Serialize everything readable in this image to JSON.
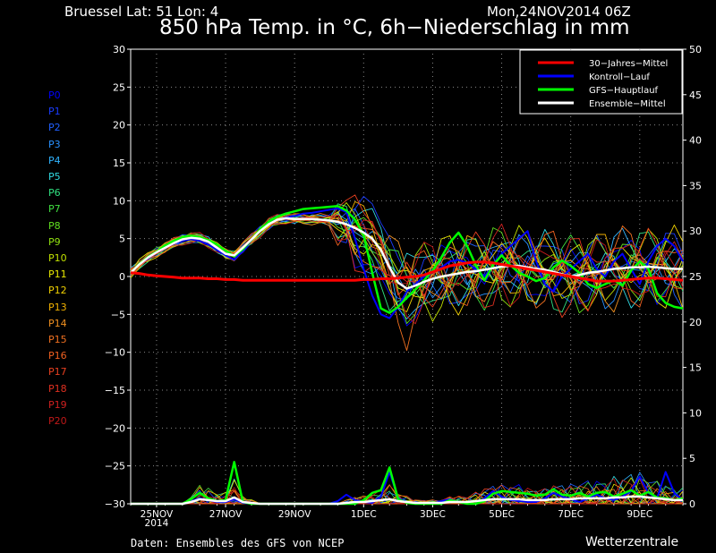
{
  "header": {
    "location": "Bruessel  Lat: 51 Lon: 4",
    "run": "Mon,24NOV2014 06Z",
    "title": "850 hPa Temp. in °C, 6h−Niederschlag in mm"
  },
  "footer": {
    "credit": "Daten: Ensembles des GFS von NCEP",
    "brand": "Wetterzentrale"
  },
  "members": [
    {
      "label": "P0",
      "color": "#0000ff"
    },
    {
      "label": "P1",
      "color": "#1a3cff"
    },
    {
      "label": "P2",
      "color": "#2060ff"
    },
    {
      "label": "P3",
      "color": "#2890ff"
    },
    {
      "label": "P4",
      "color": "#30b4ff"
    },
    {
      "label": "P5",
      "color": "#30d8e0"
    },
    {
      "label": "P6",
      "color": "#30e080"
    },
    {
      "label": "P7",
      "color": "#40e040"
    },
    {
      "label": "P8",
      "color": "#60e020"
    },
    {
      "label": "P9",
      "color": "#90e010"
    },
    {
      "label": "P10",
      "color": "#c0e000"
    },
    {
      "label": "P11",
      "color": "#e8e800"
    },
    {
      "label": "P12",
      "color": "#f0d000"
    },
    {
      "label": "P13",
      "color": "#f0b000"
    },
    {
      "label": "P14",
      "color": "#f09020"
    },
    {
      "label": "P15",
      "color": "#f07020"
    },
    {
      "label": "P16",
      "color": "#f06020"
    },
    {
      "label": "P17",
      "color": "#e84020"
    },
    {
      "label": "P18",
      "color": "#e03020"
    },
    {
      "label": "P19",
      "color": "#d02020"
    },
    {
      "label": "P20",
      "color": "#c01818"
    }
  ],
  "chart_data": {
    "type": "line",
    "x_ticks": [
      "25NOV\n2014",
      "27NOV",
      "29NOV",
      "1DEC",
      "3DEC",
      "5DEC",
      "7DEC",
      "9DEC"
    ],
    "x_range_days": [
      0,
      16
    ],
    "ylim_left": [
      -30,
      30
    ],
    "ylim_right": [
      0,
      50
    ],
    "yticks_left": [
      30,
      25,
      20,
      15,
      10,
      5,
      0,
      -5,
      -10,
      -15,
      -20,
      -25,
      -30
    ],
    "yticks_right": [
      50,
      45,
      40,
      35,
      30,
      25,
      20,
      15,
      10,
      5,
      0
    ],
    "grid": true,
    "legend_position": "top-right",
    "legend": [
      {
        "name": "30−Jahres−Mittel",
        "color": "#ff0000"
      },
      {
        "name": "Kontroll−Lauf",
        "color": "#0000ff"
      },
      {
        "name": "GFS−Hauptlauf",
        "color": "#00ff00"
      },
      {
        "name": "Ensemble−Mittel",
        "color": "#ffffff"
      }
    ],
    "temp_step_days": 0.25,
    "climate_mean": [
      0.5,
      0.4,
      0.2,
      0.1,
      0,
      -0.1,
      -0.2,
      -0.2,
      -0.2,
      -0.3,
      -0.3,
      -0.4,
      -0.4,
      -0.5,
      -0.5,
      -0.5,
      -0.5,
      -0.5,
      -0.5,
      -0.5,
      -0.5,
      -0.5,
      -0.5,
      -0.5,
      -0.5,
      -0.5,
      -0.5,
      -0.4,
      -0.4,
      -0.3,
      -0.3,
      -0.2,
      -0.1,
      0,
      0.2,
      0.6,
      1,
      1.4,
      1.6,
      1.8,
      1.9,
      1.9,
      1.8,
      1.6,
      1.4,
      1.2,
      1,
      0.8,
      0.6,
      0.4,
      0.2,
      0,
      -0.2,
      -0.4,
      -0.6,
      -0.6,
      -0.6,
      -0.5,
      -0.4,
      -0.3,
      -0.2,
      -0.2,
      -0.3,
      -0.4,
      -0.5
    ],
    "ensemble_mean": [
      0.5,
      1.6,
      2.5,
      3.2,
      3.8,
      4.4,
      4.9,
      5.1,
      5,
      4.6,
      3.8,
      3,
      2.8,
      3.8,
      4.9,
      6,
      6.9,
      7.5,
      7.7,
      7.6,
      7.6,
      7.6,
      7.5,
      7.4,
      7.2,
      6.9,
      6.4,
      5.8,
      5,
      3.5,
      1.2,
      -0.8,
      -1.6,
      -1.2,
      -0.7,
      -0.3,
      0,
      0.2,
      0.4,
      0.6,
      0.7,
      0.9,
      1.1,
      1.3,
      1.4,
      1.4,
      1.2,
      1,
      0.9,
      0.6,
      0.3,
      0,
      0.2,
      0.5,
      0.6,
      0.8,
      1,
      1.1,
      1.2,
      1.2,
      1.3,
      1.2,
      1.1,
      1,
      1
    ],
    "control_run": [
      0.5,
      1.6,
      2.4,
      3.2,
      3.9,
      4.3,
      4.7,
      4.9,
      4.7,
      4.2,
      3.5,
      2.8,
      2.2,
      3.4,
      4.8,
      6.2,
      7,
      7.5,
      7.8,
      8,
      8.3,
      8.4,
      8.6,
      8.8,
      9,
      8.5,
      5,
      1,
      -2.5,
      -5,
      -5.5,
      -4,
      -2,
      -1,
      0,
      0.5,
      1.2,
      2,
      2.2,
      1.8,
      1,
      0,
      1.5,
      3,
      4,
      5,
      6,
      2,
      -1,
      -2,
      0,
      1,
      2,
      3,
      1,
      0,
      2,
      3,
      1,
      -1,
      2,
      4,
      5,
      4,
      2
    ],
    "gfs_main_run": [
      0.5,
      1.7,
      2.6,
      3.3,
      4.1,
      4.7,
      5.2,
      5.4,
      5.2,
      4.8,
      4.2,
      3.4,
      2.7,
      3.6,
      4.9,
      6.2,
      7.2,
      7.9,
      8.3,
      8.6,
      8.9,
      9,
      9.1,
      9.2,
      9.3,
      8.7,
      7.5,
      5.5,
      0.5,
      -4.2,
      -4.8,
      -4,
      -2.8,
      -1.7,
      -0.5,
      0.8,
      2.5,
      4.5,
      5.8,
      4,
      1.5,
      -0.5,
      1.5,
      2.8,
      1.5,
      0.5,
      0,
      -0.6,
      -0.2,
      1.2,
      2.1,
      1.4,
      0.5,
      -1,
      -1.5,
      -1,
      -0.5,
      -1.2,
      0.8,
      2,
      1,
      -2.2,
      -3.5,
      -4,
      -4.2
    ],
    "precip_step_days": 0.25,
    "precip_gfs_main": [
      0,
      0,
      0,
      0,
      0,
      0,
      0,
      0.5,
      1.2,
      0.6,
      0.3,
      0.4,
      4.6,
      0.2,
      0,
      0,
      0,
      0,
      0,
      0,
      0,
      0,
      0,
      0,
      0,
      0,
      0,
      0.4,
      1.2,
      1.5,
      4,
      0.5,
      0.1,
      0,
      0,
      0,
      0,
      0.4,
      0.2,
      0,
      0,
      0.3,
      1.1,
      1.4,
      1.3,
      1.2,
      1.1,
      0.9,
      1,
      1.6,
      1,
      0.9,
      1.2,
      0.8,
      1.2,
      1.3,
      0.8,
      1.1,
      1.5,
      0.9,
      1.3,
      0.7,
      0.6,
      0.4,
      0.6
    ],
    "precip_ensemble_mean": [
      0,
      0,
      0,
      0,
      0,
      0,
      0,
      0.2,
      0.5,
      0.4,
      0.3,
      0.3,
      0.7,
      0.2,
      0.1,
      0,
      0,
      0,
      0,
      0,
      0,
      0,
      0,
      0,
      0,
      0.1,
      0.2,
      0.2,
      0.3,
      0.4,
      0.5,
      0.3,
      0.2,
      0.1,
      0.1,
      0.1,
      0.1,
      0.2,
      0.2,
      0.2,
      0.3,
      0.4,
      0.5,
      0.5,
      0.5,
      0.5,
      0.4,
      0.4,
      0.4,
      0.5,
      0.5,
      0.5,
      0.6,
      0.6,
      0.6,
      0.6,
      0.7,
      0.7,
      0.8,
      0.8,
      0.7,
      0.6,
      0.5,
      0.4,
      0.4
    ],
    "precip_control": [
      0,
      0,
      0,
      0,
      0,
      0,
      0,
      0.3,
      0.6,
      0.4,
      0.2,
      0.2,
      0.5,
      0.1,
      0,
      0,
      0,
      0,
      0,
      0,
      0,
      0,
      0,
      0,
      0.3,
      1,
      0.4,
      0.2,
      0.1,
      0.8,
      3.5,
      0.6,
      0.2,
      0,
      0,
      0,
      0.3,
      0.5,
      0.2,
      0,
      0,
      0.6,
      1.4,
      0.8,
      0.4,
      0.3,
      0.2,
      0.2,
      0.6,
      1.2,
      0.8,
      0.5,
      0.2,
      0.6,
      1,
      0.6,
      0.4,
      0.8,
      1.4,
      3,
      1.2,
      0.6,
      3.5,
      1.2,
      0.4
    ]
  }
}
